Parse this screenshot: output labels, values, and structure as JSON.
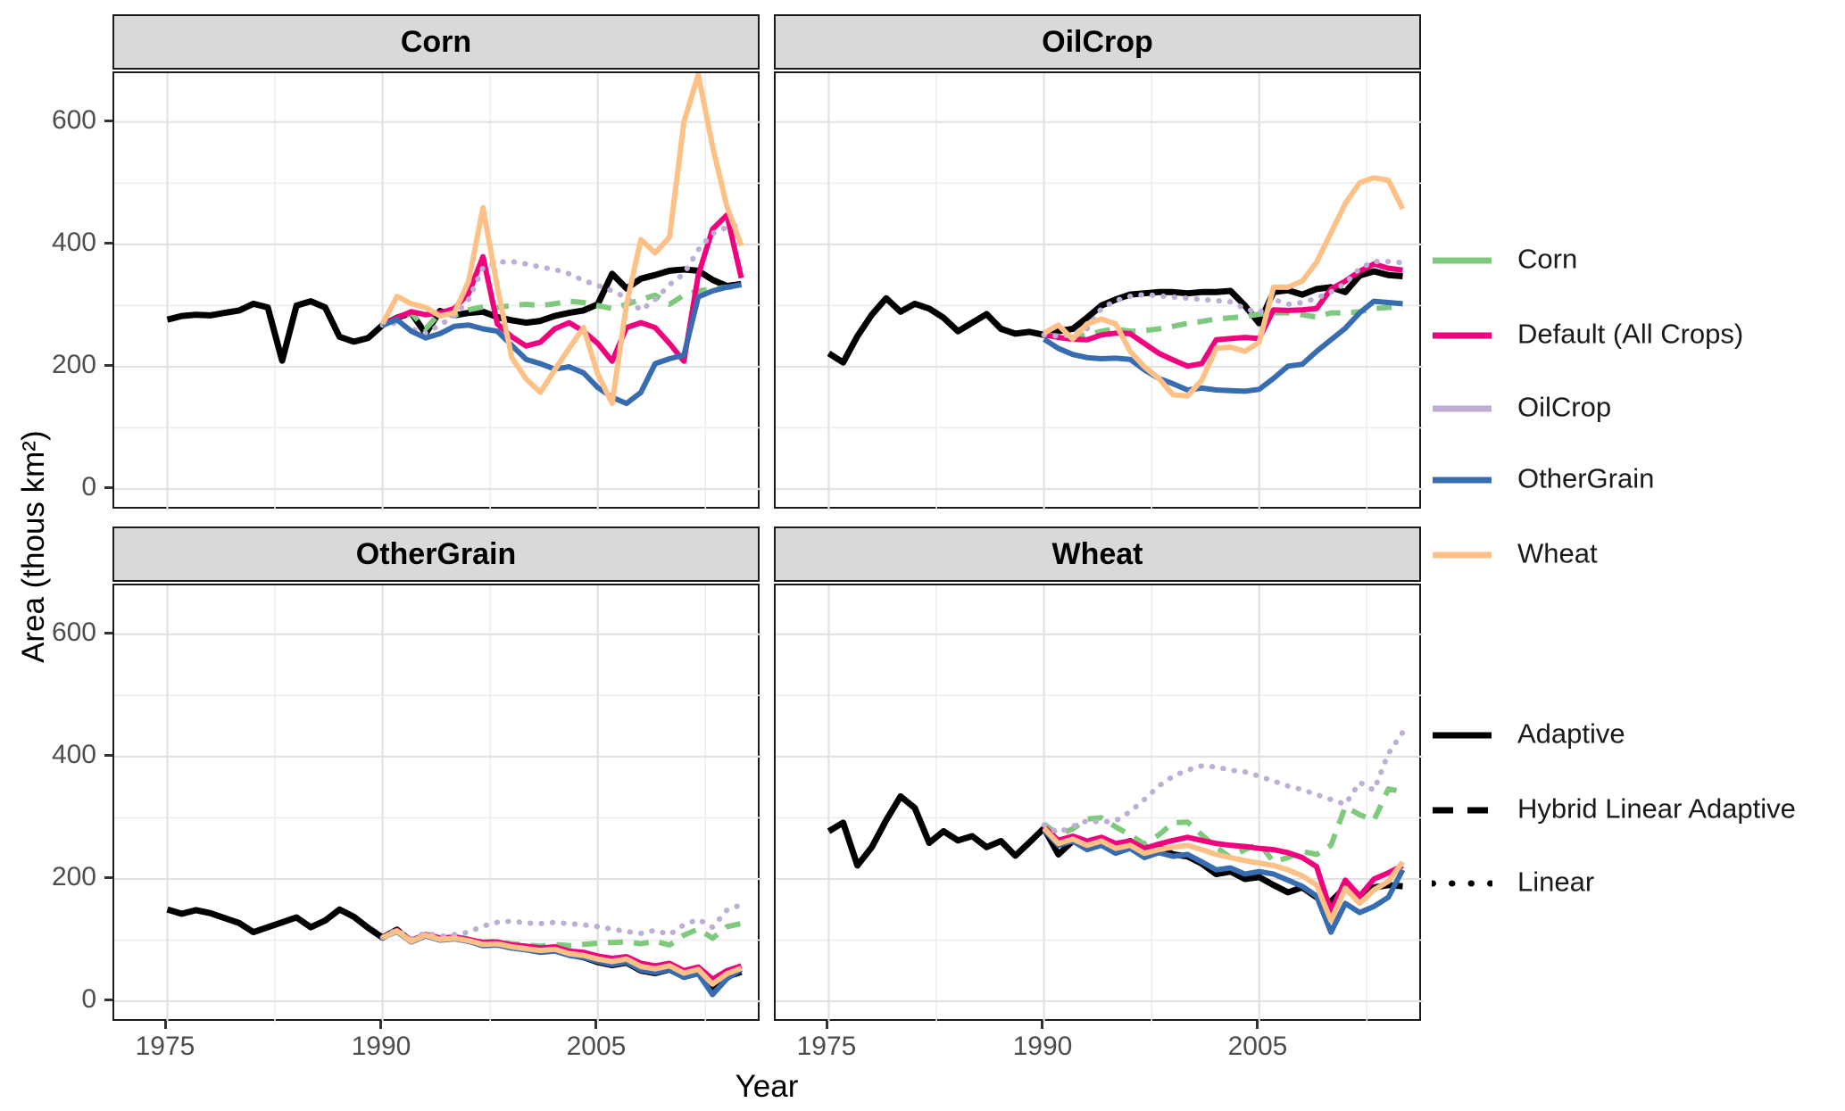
{
  "chart_data": {
    "type": "line",
    "title": "",
    "xlabel": "Year",
    "ylabel": "Area (thous km²)",
    "x_ticks": [
      1975,
      1990,
      2005
    ],
    "x_minor_ticks": [
      1982.5,
      1997.5,
      2012.5
    ],
    "y_ticks": [
      0,
      200,
      400,
      600
    ],
    "y_minor_ticks": [
      100,
      300,
      500
    ],
    "x_range": [
      1971.3,
      2016.4
    ],
    "y_range": [
      -35,
      680
    ],
    "grid": "on",
    "legend_position": "right",
    "facets": [
      {
        "title": "Corn",
        "series": [
          {
            "name": "Adaptive",
            "color": "#000000",
            "linetype": "solid",
            "start_year": 1975,
            "values": [
              277,
              283,
              285,
              284,
              288,
              292,
              303,
              297,
              210,
              300,
              307,
              297,
              249,
              241,
              247,
              268,
              280,
              288,
              254,
              291,
              284,
              288,
              290,
              281,
              276,
              272,
              275,
              283,
              288,
              292,
              302,
              352,
              328,
              344,
              350,
              357,
              359,
              357,
              342,
              332,
              335
            ]
          },
          {
            "name": "Corn",
            "color": "#7FC97F",
            "linetype": "dashed",
            "start_year": 1990,
            "values": [
              268,
              278,
              288,
              262,
              288,
              284,
              293,
              298,
              297,
              300,
              302,
              300,
              303,
              307,
              305,
              300,
              295,
              302,
              310,
              317,
              302,
              317,
              324,
              327,
              330,
              331
            ]
          },
          {
            "name": "Default (All Crops)",
            "color": "#F0027F",
            "linetype": "solid",
            "start_year": 1990,
            "values": [
              268,
              280,
              290,
              285,
              288,
              295,
              320,
              380,
              270,
              249,
              234,
              240,
              262,
              272,
              258,
              238,
              209,
              264,
              272,
              264,
              238,
              209,
              350,
              425,
              448,
              345
            ]
          },
          {
            "name": "OilCrop",
            "color": "#BEAED4",
            "linetype": "dotted",
            "start_year": 1990,
            "values": [
              268,
              272,
              262,
              255,
              268,
              283,
              310,
              362,
              371,
              372,
              368,
              363,
              359,
              352,
              341,
              333,
              324,
              313,
              292,
              310,
              334,
              352,
              391,
              418,
              428,
              433
            ]
          },
          {
            "name": "OtherGrain",
            "color": "#386CB0",
            "linetype": "solid",
            "start_year": 1990,
            "values": [
              268,
              277,
              258,
              247,
              254,
              266,
              268,
              262,
              258,
              235,
              212,
              205,
              196,
              200,
              190,
              166,
              150,
              140,
              158,
              205,
              213,
              219,
              314,
              324,
              330,
              334
            ]
          },
          {
            "name": "Wheat",
            "color": "#FDC086",
            "linetype": "solid",
            "start_year": 1990,
            "values": [
              270,
              315,
              303,
              297,
              283,
              288,
              340,
              460,
              330,
              215,
              180,
              158,
              195,
              230,
              264,
              188,
              140,
              302,
              408,
              386,
              412,
              600,
              678,
              560,
              462,
              398
            ]
          }
        ]
      },
      {
        "title": "OilCrop",
        "series": [
          {
            "name": "Adaptive",
            "color": "#000000",
            "linetype": "solid",
            "start_year": 1975,
            "values": [
              222,
              207,
              250,
              285,
              312,
              290,
              303,
              295,
              280,
              258,
              272,
              286,
              262,
              254,
              257,
              252,
              258,
              262,
              280,
              300,
              310,
              318,
              320,
              322,
              322,
              320,
              322,
              322,
              324,
              300,
              271,
              322,
              325,
              318,
              327,
              330,
              322,
              349,
              356,
              350,
              348
            ]
          },
          {
            "name": "Corn",
            "color": "#7FC97F",
            "linetype": "dashed",
            "start_year": 1990,
            "values": [
              252,
              250,
              248,
              252,
              258,
              262,
              258,
              259,
              262,
              266,
              271,
              274,
              278,
              280,
              282,
              286,
              288,
              288,
              285,
              281,
              288,
              288,
              290,
              295,
              297,
              297
            ]
          },
          {
            "name": "Default (All Crops)",
            "color": "#F0027F",
            "linetype": "solid",
            "start_year": 1990,
            "values": [
              252,
              248,
              245,
              244,
              252,
              255,
              254,
              238,
              222,
              211,
              201,
              205,
              244,
              246,
              248,
              246,
              293,
              292,
              293,
              295,
              327,
              340,
              356,
              368,
              361,
              358
            ]
          },
          {
            "name": "OilCrop",
            "color": "#BEAED4",
            "linetype": "dotted",
            "start_year": 1990,
            "values": [
              252,
              250,
              252,
              262,
              295,
              308,
              315,
              318,
              316,
              314,
              312,
              310,
              308,
              306,
              295,
              288,
              310,
              302,
              305,
              312,
              322,
              336,
              361,
              372,
              372,
              370
            ]
          },
          {
            "name": "OtherGrain",
            "color": "#386CB0",
            "linetype": "solid",
            "start_year": 1990,
            "values": [
              245,
              230,
              220,
              215,
              213,
              214,
              212,
              195,
              181,
              172,
              162,
              165,
              162,
              161,
              160,
              163,
              181,
              201,
              204,
              225,
              244,
              263,
              288,
              307,
              305,
              303
            ]
          },
          {
            "name": "Wheat",
            "color": "#FDC086",
            "linetype": "solid",
            "start_year": 1990,
            "values": [
              255,
              268,
              245,
              270,
              278,
              270,
              225,
              200,
              181,
              154,
              152,
              178,
              230,
              232,
              225,
              240,
              330,
              330,
              340,
              371,
              419,
              467,
              501,
              509,
              505,
              458
            ]
          }
        ]
      },
      {
        "title": "OtherGrain",
        "series": [
          {
            "name": "Adaptive",
            "color": "#000000",
            "linetype": "solid",
            "start_year": 1975,
            "values": [
              150,
              143,
              149,
              144,
              136,
              128,
              113,
              121,
              129,
              137,
              121,
              132,
              150,
              138,
              120,
              104,
              117,
              98,
              108,
              102,
              104,
              99,
              92,
              95,
              88,
              86,
              81,
              84,
              76,
              72,
              64,
              59,
              63,
              50,
              46,
              52,
              40,
              46,
              18,
              40,
              48
            ]
          },
          {
            "name": "Corn",
            "color": "#7FC97F",
            "linetype": "dashed",
            "start_year": 1990,
            "values": [
              104,
              116,
              100,
              110,
              104,
              106,
              102,
              97,
              98,
              94,
              92,
              90,
              93,
              91,
              93,
              95,
              96,
              97,
              94,
              98,
              92,
              108,
              118,
              103,
              122,
              127
            ]
          },
          {
            "name": "Default (All Crops)",
            "color": "#F0027F",
            "linetype": "solid",
            "start_year": 1990,
            "values": [
              104,
              116,
              99,
              109,
              103,
              105,
              101,
              96,
              97,
              92,
              90,
              87,
              89,
              82,
              80,
              74,
              70,
              73,
              62,
              58,
              62,
              50,
              56,
              36,
              50,
              58
            ]
          },
          {
            "name": "OilCrop",
            "color": "#BEAED4",
            "linetype": "dotted",
            "start_year": 1990,
            "values": [
              104,
              117,
              102,
              112,
              106,
              109,
              113,
              123,
              129,
              131,
              128,
              127,
              129,
              127,
              125,
              122,
              118,
              114,
              111,
              116,
              109,
              125,
              134,
              121,
              149,
              158
            ]
          },
          {
            "name": "OtherGrain",
            "color": "#386CB0",
            "linetype": "solid",
            "start_year": 1990,
            "values": [
              104,
              114,
              97,
              107,
              100,
              102,
              98,
              91,
              92,
              87,
              84,
              80,
              82,
              75,
              72,
              65,
              60,
              64,
              51,
              47,
              52,
              39,
              45,
              11,
              37,
              52
            ]
          },
          {
            "name": "Wheat",
            "color": "#FDC086",
            "linetype": "solid",
            "start_year": 1990,
            "values": [
              104,
              115,
              98,
              108,
              101,
              103,
              99,
              93,
              94,
              89,
              86,
              83,
              85,
              78,
              75,
              69,
              65,
              69,
              57,
              53,
              58,
              46,
              52,
              28,
              45,
              54
            ]
          }
        ]
      },
      {
        "title": "Wheat",
        "series": [
          {
            "name": "Adaptive",
            "color": "#000000",
            "linetype": "solid",
            "start_year": 1975,
            "values": [
              278,
              292,
              222,
              252,
              296,
              335,
              316,
              259,
              278,
              263,
              270,
              252,
              262,
              238,
              260,
              283,
              240,
              262,
              258,
              263,
              255,
              262,
              248,
              252,
              240,
              237,
              225,
              208,
              212,
              200,
              203,
              190,
              178,
              186,
              170,
              163,
              186,
              172,
              186,
              190,
              188
            ]
          },
          {
            "name": "Corn",
            "color": "#7FC97F",
            "linetype": "dashed",
            "start_year": 1990,
            "values": [
              290,
              272,
              282,
              298,
              300,
              285,
              272,
              257,
              272,
              292,
              293,
              272,
              252,
              235,
              248,
              258,
              228,
              235,
              245,
              240,
              255,
              318,
              305,
              296,
              347,
              343
            ]
          },
          {
            "name": "Default (All Crops)",
            "color": "#F0027F",
            "linetype": "solid",
            "start_year": 1990,
            "values": [
              285,
              263,
              270,
              262,
              268,
              258,
              262,
              250,
              257,
              263,
              268,
              263,
              258,
              255,
              253,
              250,
              248,
              243,
              235,
              220,
              147,
              198,
              172,
              200,
              210,
              222
            ]
          },
          {
            "name": "OilCrop",
            "color": "#BEAED4",
            "linetype": "dotted",
            "start_year": 1990,
            "values": [
              288,
              276,
              286,
              295,
              293,
              295,
              310,
              330,
              352,
              368,
              378,
              385,
              383,
              378,
              375,
              368,
              360,
              352,
              346,
              338,
              330,
              322,
              358,
              345,
              405,
              440
            ]
          },
          {
            "name": "OtherGrain",
            "color": "#386CB0",
            "linetype": "solid",
            "start_year": 1990,
            "values": [
              280,
              255,
              262,
              248,
              255,
              242,
              250,
              235,
              243,
              237,
              240,
              228,
              215,
              218,
              208,
              212,
              208,
              198,
              188,
              172,
              113,
              160,
              145,
              155,
              170,
              215
            ]
          },
          {
            "name": "Wheat",
            "color": "#FDC086",
            "linetype": "solid",
            "start_year": 1990,
            "values": [
              283,
              258,
              265,
              255,
              262,
              250,
              255,
              242,
              248,
              252,
              255,
              248,
              240,
              235,
              230,
              226,
              222,
              215,
              205,
              190,
              132,
              185,
              160,
              182,
              196,
              228
            ]
          }
        ]
      }
    ]
  },
  "axes": {
    "y_tick_labels": [
      "0",
      "200",
      "400",
      "600"
    ],
    "x_tick_labels": [
      "1975",
      "1990",
      "2005"
    ]
  },
  "legend": {
    "color_items": [
      {
        "label": "Corn",
        "color": "#7FC97F",
        "linetype": "solid"
      },
      {
        "label": "Default (All Crops)",
        "color": "#F0027F",
        "linetype": "solid"
      },
      {
        "label": "OilCrop",
        "color": "#BEAED4",
        "linetype": "solid"
      },
      {
        "label": "OtherGrain",
        "color": "#386CB0",
        "linetype": "solid"
      },
      {
        "label": "Wheat",
        "color": "#FDC086",
        "linetype": "solid"
      }
    ],
    "linetype_items": [
      {
        "label": "Adaptive",
        "color": "#000000",
        "linetype": "solid"
      },
      {
        "label": "Hybrid Linear Adaptive",
        "color": "#000000",
        "linetype": "dashed"
      },
      {
        "label": "Linear",
        "color": "#000000",
        "linetype": "dotted"
      }
    ]
  },
  "style": {
    "strip_background": "#d9d9d9",
    "panel_background": "#ffffff",
    "major_grid_color": "#e2e2e2",
    "minor_grid_color": "#ededed",
    "border_color": "#1a1a1a",
    "tick_text_color": "#4d4d4d"
  }
}
